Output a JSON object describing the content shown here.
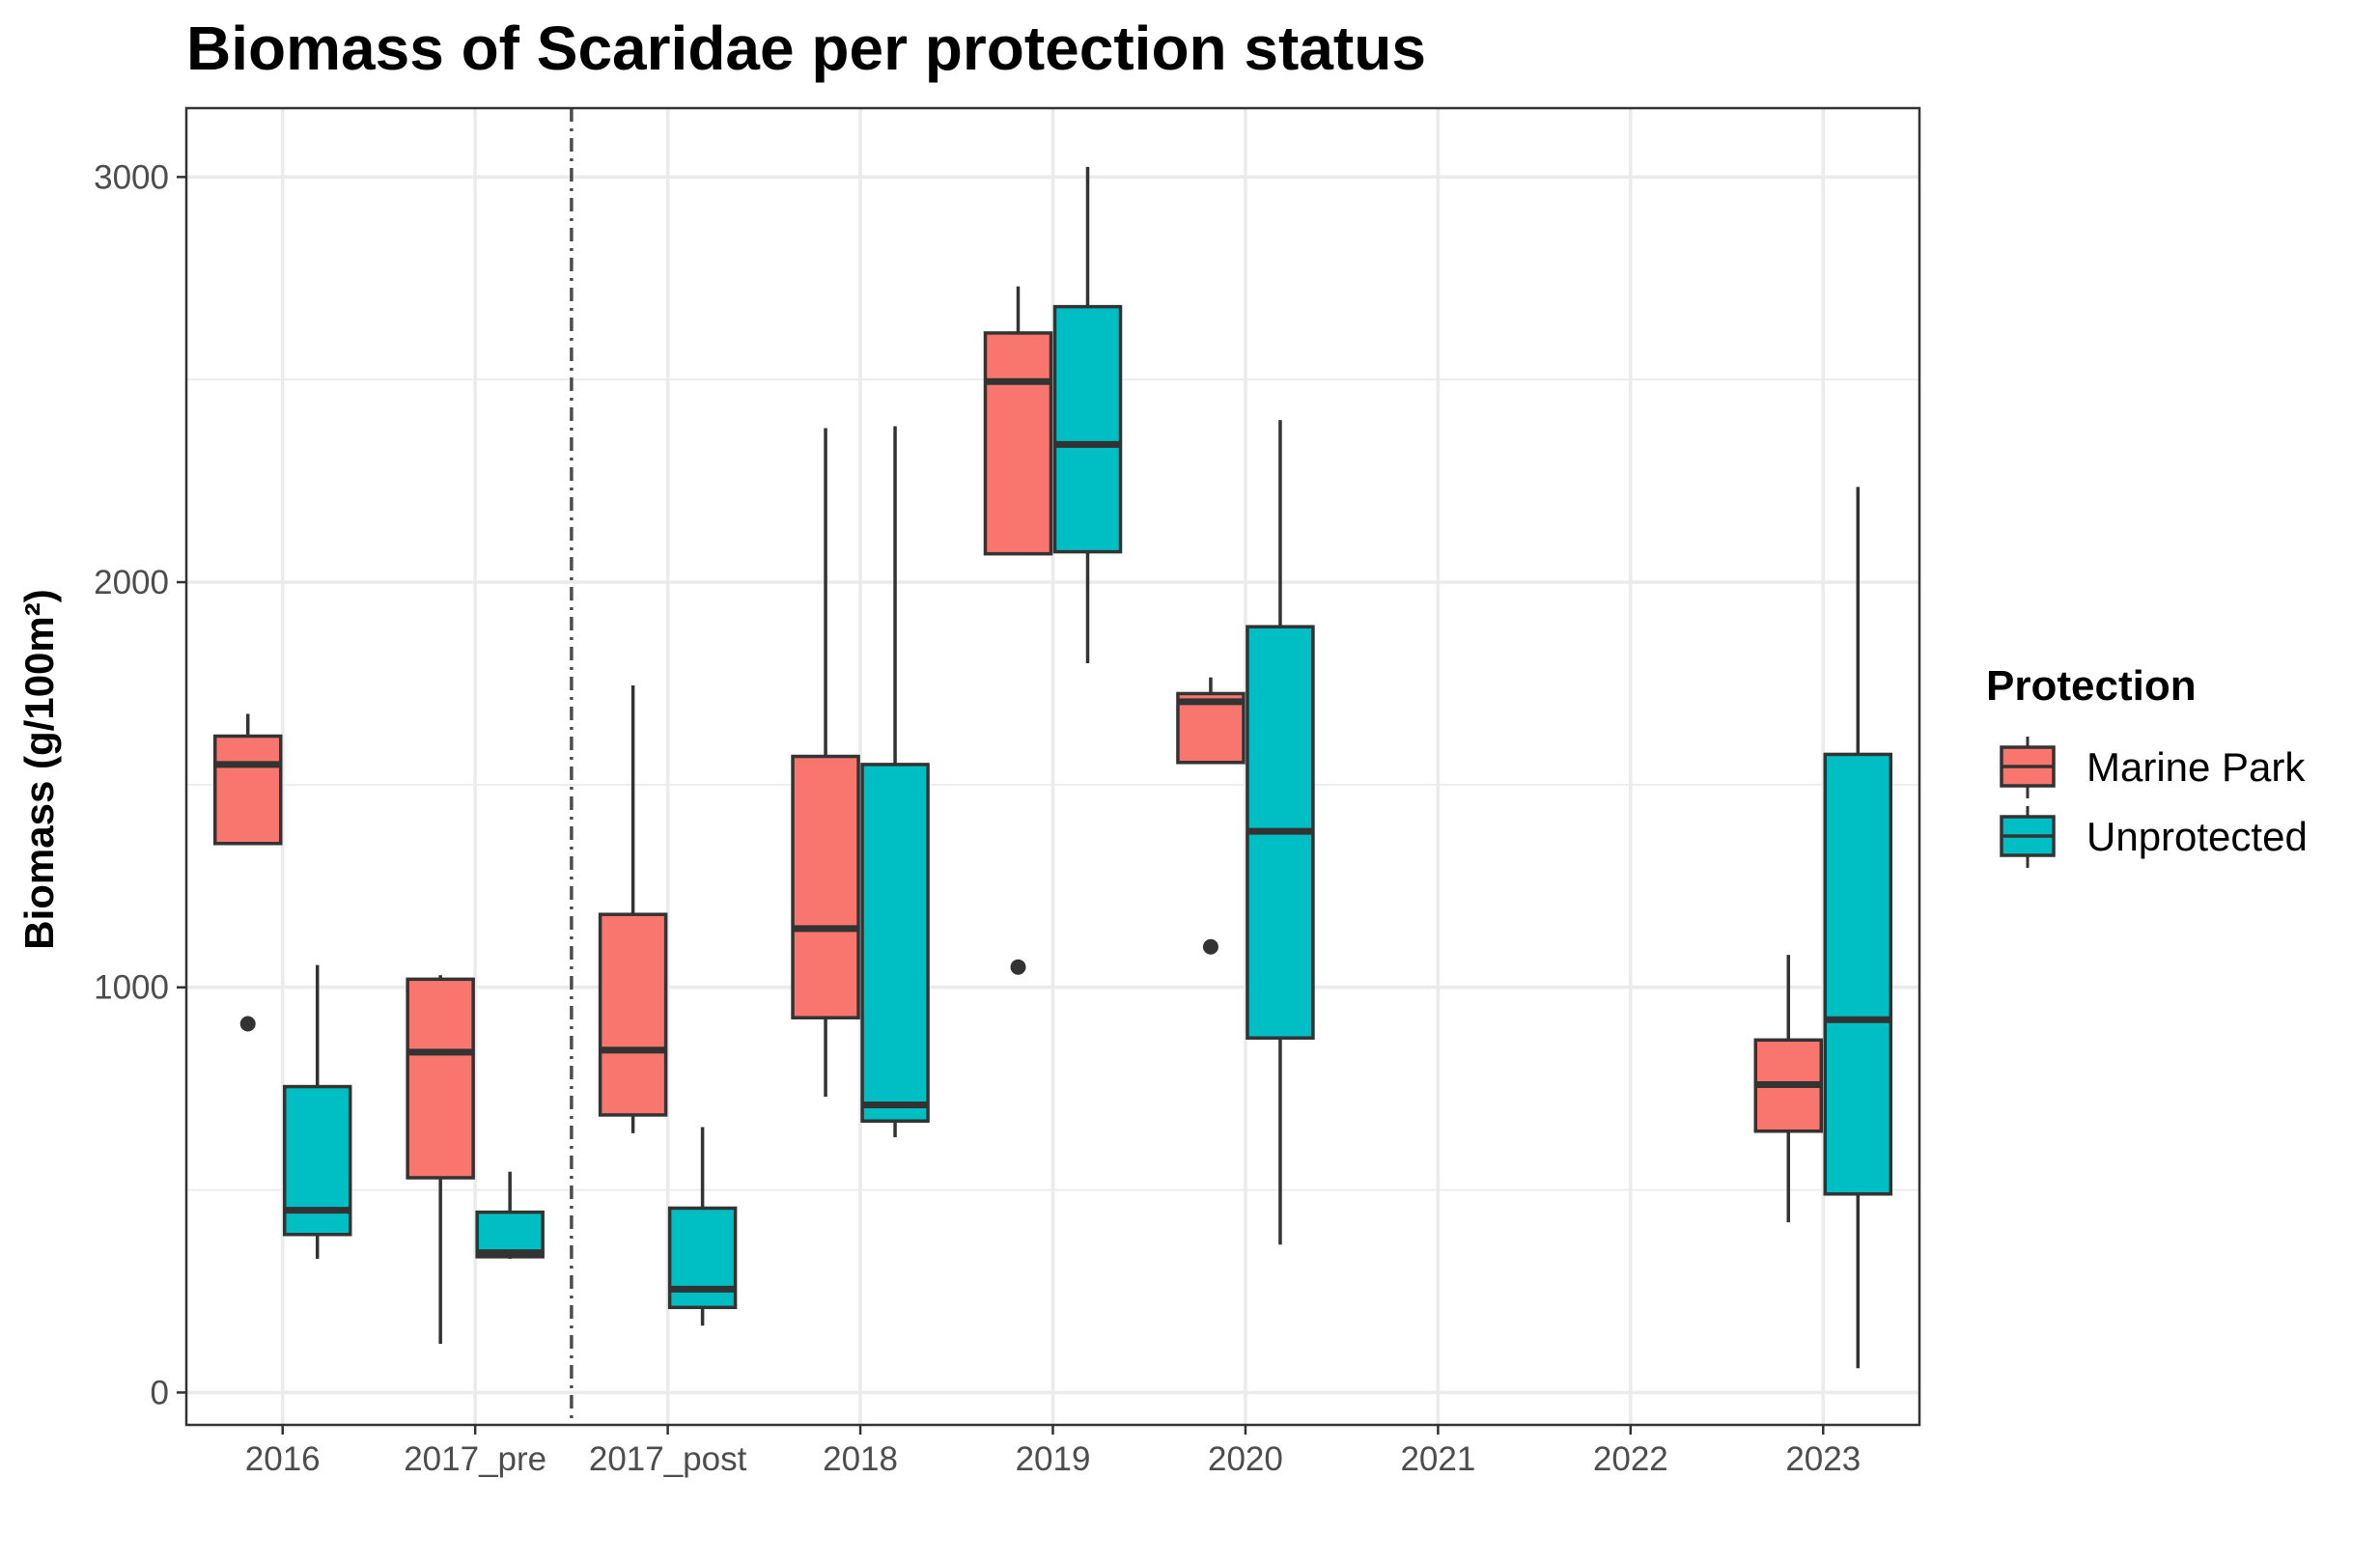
{
  "chart_data": {
    "type": "box",
    "title": "Biomass of Scaridae per protection status",
    "xlabel": "",
    "ylabel": "Biomass (g/100m²)",
    "categories": [
      "2016",
      "2017_pre",
      "2017_post",
      "2018",
      "2019",
      "2020",
      "2021",
      "2022",
      "2023"
    ],
    "ylim": [
      -80,
      3170
    ],
    "yticks": [
      0,
      1000,
      2000,
      3000
    ],
    "grid": true,
    "divider_after_category": "2017_pre",
    "legend": {
      "title": "Protection",
      "position": "right",
      "entries": [
        "Marine Park",
        "Unprotected"
      ]
    },
    "colors": {
      "Marine Park": "#F8766D",
      "Unprotected": "#00BFC4",
      "box_stroke": "#333333",
      "grid": "#EBEBEB",
      "divider": "#4d4d4d"
    },
    "series": [
      {
        "name": "Marine Park",
        "boxes": [
          {
            "category": "2016",
            "whisker_low": 1355,
            "q1": 1355,
            "median": 1550,
            "q3": 1620,
            "whisker_high": 1675,
            "outliers": [
              910
            ]
          },
          {
            "category": "2017_pre",
            "whisker_low": 120,
            "q1": 530,
            "median": 840,
            "q3": 1020,
            "whisker_high": 1030,
            "outliers": []
          },
          {
            "category": "2017_post",
            "whisker_low": 640,
            "q1": 685,
            "median": 845,
            "q3": 1180,
            "whisker_high": 1745,
            "outliers": []
          },
          {
            "category": "2018",
            "whisker_low": 730,
            "q1": 925,
            "median": 1145,
            "q3": 1570,
            "whisker_high": 2380,
            "outliers": []
          },
          {
            "category": "2019",
            "whisker_low": 2070,
            "q1": 2070,
            "median": 2495,
            "q3": 2615,
            "whisker_high": 2730,
            "outliers": [
              1050
            ]
          },
          {
            "category": "2020",
            "whisker_low": 1555,
            "q1": 1555,
            "median": 1705,
            "q3": 1725,
            "whisker_high": 1765,
            "outliers": [
              1100
            ]
          },
          {
            "category": "2023",
            "whisker_low": 420,
            "q1": 645,
            "median": 760,
            "q3": 870,
            "whisker_high": 1080,
            "outliers": []
          }
        ]
      },
      {
        "name": "Unprotected",
        "boxes": [
          {
            "category": "2016",
            "whisker_low": 330,
            "q1": 390,
            "median": 450,
            "q3": 755,
            "whisker_high": 1055,
            "outliers": []
          },
          {
            "category": "2017_pre",
            "whisker_low": 330,
            "q1": 335,
            "median": 345,
            "q3": 445,
            "whisker_high": 545,
            "outliers": []
          },
          {
            "category": "2017_post",
            "whisker_low": 165,
            "q1": 210,
            "median": 255,
            "q3": 455,
            "whisker_high": 655,
            "outliers": []
          },
          {
            "category": "2018",
            "whisker_low": 630,
            "q1": 670,
            "median": 710,
            "q3": 1550,
            "whisker_high": 2385,
            "outliers": []
          },
          {
            "category": "2019",
            "whisker_low": 1800,
            "q1": 2075,
            "median": 2340,
            "q3": 2680,
            "whisker_high": 3025,
            "outliers": []
          },
          {
            "category": "2020",
            "whisker_low": 365,
            "q1": 875,
            "median": 1385,
            "q3": 1890,
            "whisker_high": 2400,
            "outliers": []
          },
          {
            "category": "2023",
            "whisker_low": 60,
            "q1": 490,
            "median": 920,
            "q3": 1575,
            "whisker_high": 2235,
            "outliers": []
          }
        ]
      }
    ]
  }
}
